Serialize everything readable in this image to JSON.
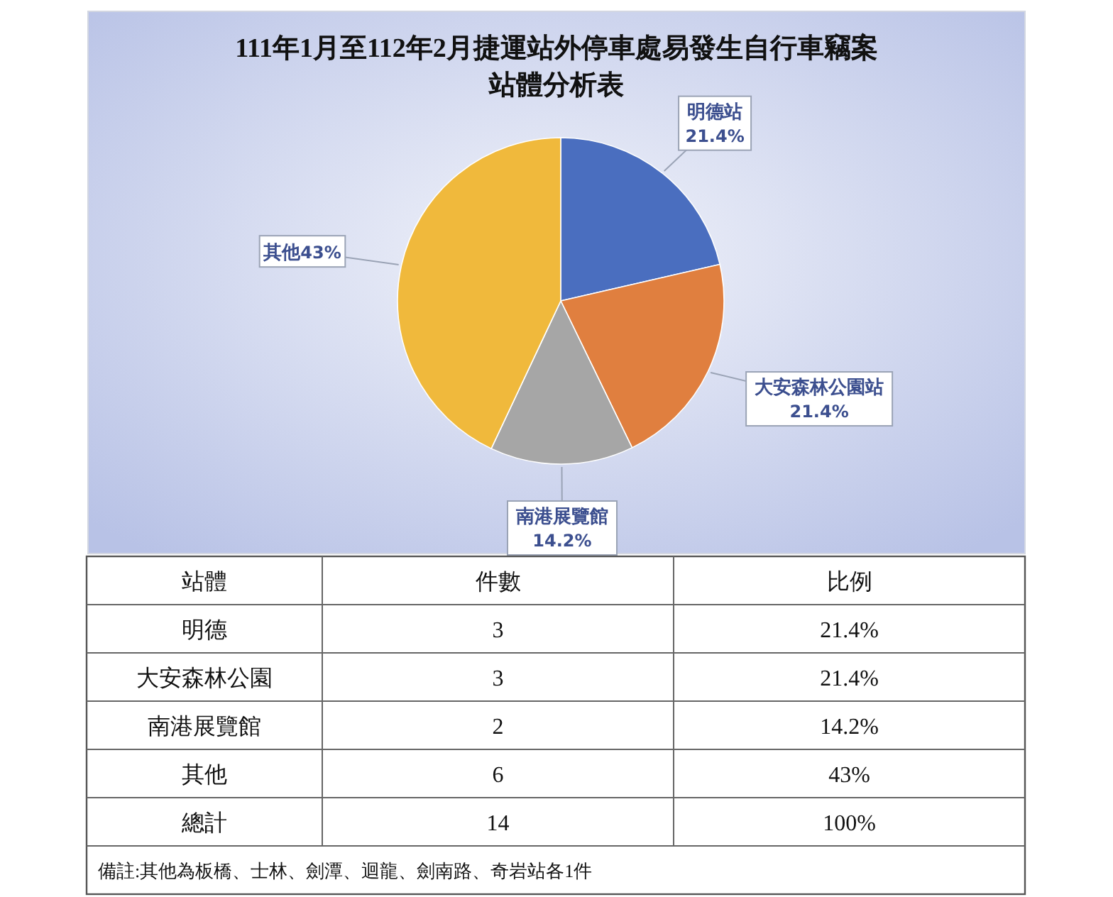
{
  "chart_data": [
    {
      "type": "pie",
      "title": "111年1月至112年2月捷運站外停車處易發生自行車竊案",
      "subtitle": "站體分析表",
      "categories": [
        "明德站",
        "大安森林公園站",
        "南港展覽館",
        "其他"
      ],
      "values": [
        21.4,
        21.4,
        14.2,
        43
      ],
      "colors": [
        "#4a6ebf",
        "#e07f3f",
        "#a6a6a6",
        "#f0b93c"
      ],
      "value_labels": [
        "21.4%",
        "21.4%",
        "14.2%",
        "43%"
      ]
    },
    {
      "type": "other",
      "ylabel": "站體",
      "categories": [
        "明德",
        "大安森林公園",
        "南港展覽館",
        "其他",
        "總計"
      ],
      "data_labels": true,
      "series": [
        {
          "name": "件數",
          "values": [
            3,
            3,
            2,
            6,
            14
          ]
        },
        {
          "name": "比例",
          "values": [
            21.4,
            21.4,
            14.2,
            43,
            100
          ],
          "value_labels": [
            "21.4%",
            "21.4%",
            "14.2%",
            "43%",
            "100%"
          ]
        }
      ],
      "annotations": [
        "備註:其他為板橋、士林、劍潭、迴龍、劍南路、奇岩站各1件"
      ]
    }
  ]
}
